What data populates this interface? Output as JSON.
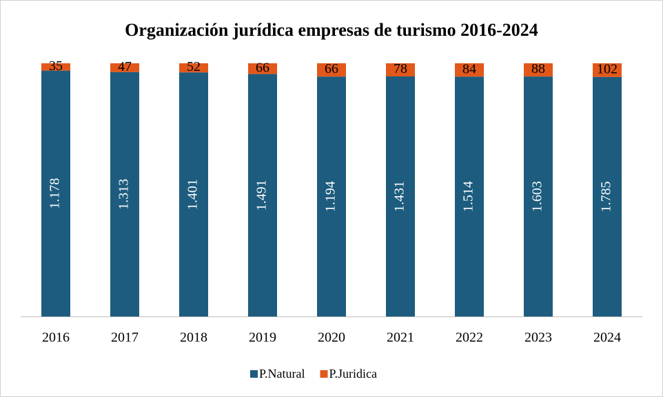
{
  "chart_data": {
    "type": "bar",
    "stacking": "percent",
    "title": "Organización jurídica empresas de turismo 2016-2024",
    "categories": [
      "2016",
      "2017",
      "2018",
      "2019",
      "2020",
      "2021",
      "2022",
      "2023",
      "2024"
    ],
    "series": [
      {
        "name": "P.Natural",
        "color": "#1d5c7e",
        "values": [
          1178,
          1313,
          1401,
          1491,
          1194,
          1431,
          1514,
          1603,
          1785
        ],
        "value_labels": [
          "1.178",
          "1.313",
          "1.401",
          "1.491",
          "1.194",
          "1.431",
          "1.514",
          "1.603",
          "1.785"
        ]
      },
      {
        "name": "P.Juridica",
        "color": "#e2581b",
        "values": [
          35,
          47,
          52,
          66,
          66,
          78,
          84,
          88,
          102
        ]
      }
    ],
    "legend": "bottom"
  }
}
